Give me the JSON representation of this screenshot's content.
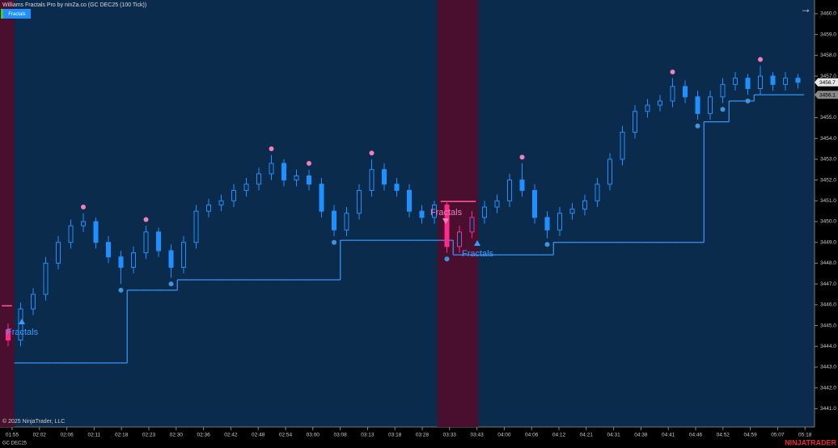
{
  "header": {
    "title": "Williams Fractals Pro by ninZa.co (GC DEC25 (100 Tick))",
    "button": "Fractals"
  },
  "footer": {
    "copyright": "© 2025 NinjaTrader, LLC",
    "instrument": "GC DEC25",
    "logo": "NINJATRADER"
  },
  "chart_data": {
    "type": "candlestick",
    "up_color": "#1e90ff",
    "down_color": "#1e90ff",
    "zone_candle_color": "#ff2a8a",
    "open": [
      3444.8,
      3444.3,
      3445.8,
      3446.5,
      3448,
      3449,
      3449.8,
      3450,
      3449,
      3448.3,
      3447.8,
      3448.5,
      3449.5,
      3448.6,
      3447.8,
      3449,
      3450.5,
      3450.8,
      3451,
      3451.5,
      3451.8,
      3452.3,
      3452.8,
      3452,
      3452.2,
      3451.8,
      3450.5,
      3449.6,
      3450.4,
      3451.5,
      3452.5,
      3451.8,
      3451.5,
      3450.5,
      3450.2,
      3450.8,
      3448.8,
      3449.5,
      3450.2,
      3450.7,
      3451,
      3452,
      3451.5,
      3450.2,
      3449.6,
      3450.4,
      3450.6,
      3451,
      3451.8,
      3453,
      3454.3,
      3455.3,
      3455.6,
      3455.8,
      3456.5,
      3456,
      3455.2,
      3456,
      3456.6,
      3456.9,
      3456.4,
      3457,
      3456.6,
      3456.9
    ],
    "high": [
      3445.1,
      3446.1,
      3446.8,
      3448.3,
      3449.3,
      3450.1,
      3450.4,
      3450.2,
      3449.3,
      3448.6,
      3448.8,
      3449.8,
      3449.7,
      3448.9,
      3449.3,
      3450.8,
      3451.1,
      3451.3,
      3451.8,
      3452.1,
      3452.6,
      3453.2,
      3453.0,
      3452.5,
      3452.5,
      3452.1,
      3450.8,
      3450.7,
      3451.8,
      3453.0,
      3452.8,
      3452.1,
      3451.8,
      3450.8,
      3451.0,
      3451.0,
      3449.8,
      3450.5,
      3451.0,
      3451.3,
      3452.3,
      3452.8,
      3451.8,
      3450.5,
      3450.7,
      3450.9,
      3451.3,
      3452.1,
      3453.3,
      3454.6,
      3455.6,
      3455.9,
      3456.1,
      3456.9,
      3456.8,
      3456.3,
      3456.3,
      3456.9,
      3457.2,
      3457.1,
      3457.5,
      3457.2,
      3457.2,
      3457.1
    ],
    "low": [
      3444.0,
      3444.0,
      3445.5,
      3446.2,
      3447.7,
      3448.7,
      3449.5,
      3448.7,
      3448.0,
      3447.0,
      3447.5,
      3448.2,
      3448.3,
      3447.3,
      3447.5,
      3448.7,
      3450.2,
      3450.5,
      3450.7,
      3451.2,
      3451.5,
      3452.0,
      3451.7,
      3451.7,
      3451.5,
      3450.2,
      3449.3,
      3449.3,
      3450.1,
      3451.2,
      3451.5,
      3451.2,
      3450.2,
      3449.9,
      3449.9,
      3448.5,
      3448.5,
      3449.2,
      3449.9,
      3450.4,
      3450.7,
      3451.2,
      3449.9,
      3449.2,
      3449.3,
      3450.1,
      3450.3,
      3450.7,
      3451.5,
      3452.7,
      3454.0,
      3455.0,
      3455.3,
      3455.5,
      3455.7,
      3454.9,
      3454.9,
      3455.7,
      3456.3,
      3456.1,
      3456.1,
      3456.3,
      3456.3,
      3456.4
    ],
    "close": [
      3444.3,
      3445.8,
      3446.5,
      3448,
      3449,
      3449.8,
      3450,
      3449,
      3448.3,
      3447.8,
      3448.5,
      3449.5,
      3448.6,
      3447.8,
      3449,
      3450.5,
      3450.8,
      3451,
      3451.5,
      3451.8,
      3452.3,
      3452.8,
      3452,
      3452.2,
      3451.8,
      3450.5,
      3449.6,
      3450.4,
      3451.5,
      3452.5,
      3451.8,
      3451.5,
      3450.5,
      3450.2,
      3450.8,
      3448.8,
      3449.5,
      3450.2,
      3450.7,
      3451,
      3452,
      3451.5,
      3450.2,
      3449.6,
      3450.4,
      3450.6,
      3451,
      3451.8,
      3453,
      3454.3,
      3455.3,
      3455.6,
      3455.8,
      3456.5,
      3456,
      3455.2,
      3456,
      3456.6,
      3456.9,
      3456.4,
      3457,
      3456.6,
      3456.9,
      3456.7
    ],
    "up_fractals": {
      "color": "#f07fc0",
      "values": [
        null,
        null,
        null,
        null,
        null,
        null,
        3450.7,
        null,
        null,
        null,
        null,
        3450.1,
        null,
        null,
        null,
        null,
        null,
        null,
        null,
        null,
        null,
        3453.5,
        null,
        null,
        3452.8,
        null,
        null,
        null,
        null,
        3453.3,
        null,
        null,
        null,
        null,
        null,
        null,
        null,
        null,
        null,
        null,
        null,
        3453.1,
        null,
        null,
        null,
        null,
        null,
        null,
        null,
        null,
        null,
        null,
        null,
        3457.2,
        null,
        null,
        null,
        null,
        null,
        null,
        3457.8,
        null,
        null,
        null
      ]
    },
    "down_fractals": {
      "color": "#3d95e0",
      "values": [
        null,
        null,
        null,
        null,
        null,
        null,
        null,
        null,
        null,
        3446.7,
        null,
        null,
        null,
        3447.0,
        null,
        null,
        null,
        null,
        null,
        null,
        null,
        null,
        null,
        null,
        null,
        null,
        3449.0,
        null,
        null,
        null,
        null,
        null,
        null,
        null,
        null,
        3448.2,
        null,
        null,
        null,
        null,
        null,
        null,
        null,
        3448.9,
        null,
        null,
        null,
        null,
        null,
        null,
        null,
        null,
        null,
        null,
        null,
        3454.6,
        null,
        3455.4,
        null,
        3455.8,
        null,
        null,
        null,
        null
      ]
    },
    "support_line": {
      "color": "#3a9bff",
      "values": [
        null,
        3443.2,
        3443.2,
        3443.2,
        3443.2,
        3443.2,
        3443.2,
        3443.2,
        3443.2,
        3443.2,
        3446.7,
        3446.7,
        3446.7,
        3446.7,
        3447.2,
        3447.2,
        3447.2,
        3447.2,
        3447.2,
        3447.2,
        3447.2,
        3447.2,
        3447.2,
        3447.2,
        3447.2,
        3447.2,
        3447.2,
        3449.1,
        3449.1,
        3449.1,
        3449.1,
        3449.1,
        3449.1,
        3449.1,
        3449.1,
        3449.1,
        3448.4,
        3448.4,
        3448.4,
        3448.4,
        3448.4,
        3448.4,
        3448.4,
        3448.4,
        3449.0,
        3449.0,
        3449.0,
        3449.0,
        3449.0,
        3449.0,
        3449.0,
        3449.0,
        3449.0,
        3449.0,
        3449.0,
        3449.0,
        3454.8,
        3454.8,
        3455.8,
        3455.8,
        3456.1,
        3456.1,
        3456.1,
        3456.1
      ]
    },
    "zones": [
      {
        "start": 0,
        "end": 0,
        "level": 3445.95
      },
      {
        "start": 35,
        "end": 37,
        "level": 3450.97
      }
    ],
    "zone_color": "#4a0f2e",
    "level_color": "#ff5aa0",
    "annotations": [
      {
        "text": "Fractals",
        "color": "#3a9bff"
      },
      {
        "text": "Fractals",
        "color": "#f07fc0"
      },
      {
        "text": "Fractals",
        "color": "#3a9bff"
      }
    ],
    "last_price": 3456.7,
    "line_price": 3456.1,
    "ylim": [
      3440.12,
      3460.66
    ],
    "yticks": [
      {
        "value": 3441,
        "label": "3441.0"
      },
      {
        "value": 3442,
        "label": "3442.0"
      },
      {
        "value": 3443,
        "label": "3443.0"
      },
      {
        "value": 3444,
        "label": "3444.0"
      },
      {
        "value": 3445,
        "label": "3445.0"
      },
      {
        "value": 3446,
        "label": "3446.0"
      },
      {
        "value": 3447,
        "label": "3447.0"
      },
      {
        "value": 3448,
        "label": "3448.0"
      },
      {
        "value": 3449,
        "label": "3449.0"
      },
      {
        "value": 3450,
        "label": "3450.0"
      },
      {
        "value": 3451,
        "label": "3451.0"
      },
      {
        "value": 3452,
        "label": "3452.0"
      },
      {
        "value": 3453,
        "label": "3453.0"
      },
      {
        "value": 3454,
        "label": "3454.0"
      },
      {
        "value": 3455,
        "label": "3455.0"
      },
      {
        "value": 3457,
        "label": "3457.0"
      },
      {
        "value": 3458,
        "label": "3458.0"
      },
      {
        "value": 3459,
        "label": "3459.0"
      },
      {
        "value": 3460,
        "label": "3460.0"
      }
    ],
    "time_labels": [
      "01:55",
      "02:02",
      "02:06",
      "02:11",
      "02:18",
      "02:23",
      "02:30",
      "02:36",
      "02:42",
      "02:48",
      "02:54",
      "03:00",
      "03:08",
      "03:13",
      "03:18",
      "03:28",
      "03:33",
      "03:43",
      "04:00",
      "04:06",
      "04:12",
      "04:21",
      "04:31",
      "04:38",
      "04:41",
      "04:46",
      "04:52",
      "04:59",
      "05:07",
      "05:18"
    ]
  }
}
